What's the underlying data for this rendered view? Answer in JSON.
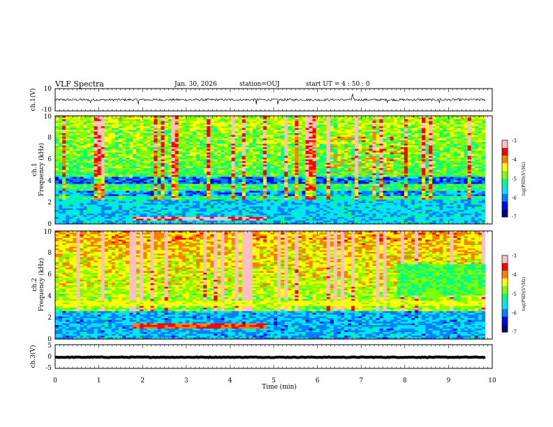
{
  "header": {
    "title": "VLF Spectra",
    "date": "Jan. 30, 2026",
    "station": "station=OUJ",
    "start_ut": "start UT =  4 : 50 : 0"
  },
  "chart_data": [
    {
      "type": "line",
      "panel": "ch1-waveform",
      "ylabel": "ch.1(V)",
      "ylim": [
        -10,
        10
      ],
      "yticks": [
        "10",
        "-10"
      ],
      "xlim": [
        0,
        10
      ],
      "series": [
        {
          "baseline": 0,
          "noise_amplitude": 2,
          "spikes_at_min": [
            0.8,
            1.9,
            4.6,
            5.1,
            6.8,
            7.6,
            8.8
          ]
        }
      ]
    },
    {
      "type": "heatmap",
      "panel": "ch1-spectrogram",
      "ylabel": "ch.1\nFrequency (kHz)",
      "ylim": [
        0,
        10
      ],
      "yticks": [
        "0",
        "2",
        "4",
        "6",
        "8",
        "10"
      ],
      "xlim": [
        0,
        10
      ],
      "color_scale": {
        "label": "log(PSD)(V²/Hz)",
        "min": -7,
        "max": -3,
        "ticks": [
          "-3",
          "-4",
          "-5",
          "-6",
          "-7"
        ]
      },
      "features": {
        "strong_low_band_khz": [
          0.3,
          0.7
        ],
        "strong_low_band_time_min": [
          1.75,
          4.8
        ],
        "dark_band_khz": [
          3.7,
          4.3
        ],
        "whistler_structures_min": [
          6.3,
          8.0
        ]
      }
    },
    {
      "type": "heatmap",
      "panel": "ch2-spectrogram",
      "ylabel": "ch.2\nFrequency (kHz)",
      "ylim": [
        0,
        10
      ],
      "yticks": [
        "0",
        "2",
        "4",
        "6",
        "8",
        "10"
      ],
      "xlim": [
        0,
        10
      ],
      "color_scale": {
        "label": "log(PSD)(V²/Hz)",
        "min": -7,
        "max": -3,
        "ticks": [
          "-3",
          "-4",
          "-5",
          "-6",
          "-7"
        ]
      },
      "features": {
        "bright_band_khz": [
          3.0,
          3.6
        ],
        "change_at_min": 7.8
      }
    },
    {
      "type": "line",
      "panel": "ch3-waveform",
      "ylabel": "ch.3(V)",
      "ylim": [
        -5,
        5
      ],
      "yticks": [
        "5",
        "0",
        "-5"
      ],
      "xlim": [
        0,
        10
      ],
      "series": [
        {
          "baseline": 0,
          "noise_amplitude": 0.3
        }
      ]
    }
  ],
  "xaxis": {
    "label": "Time (min)",
    "ticks": [
      "0",
      "1",
      "2",
      "3",
      "4",
      "5",
      "6",
      "7",
      "8",
      "9",
      "10"
    ]
  },
  "colors": {
    "colormap": [
      "#00008b",
      "#0000ff",
      "#0080ff",
      "#00e5ff",
      "#00ff80",
      "#80ff00",
      "#ffff00",
      "#ff8000",
      "#ff0000",
      "#ffc0c0"
    ],
    "axis": "#000000",
    "trace": "#000000"
  }
}
